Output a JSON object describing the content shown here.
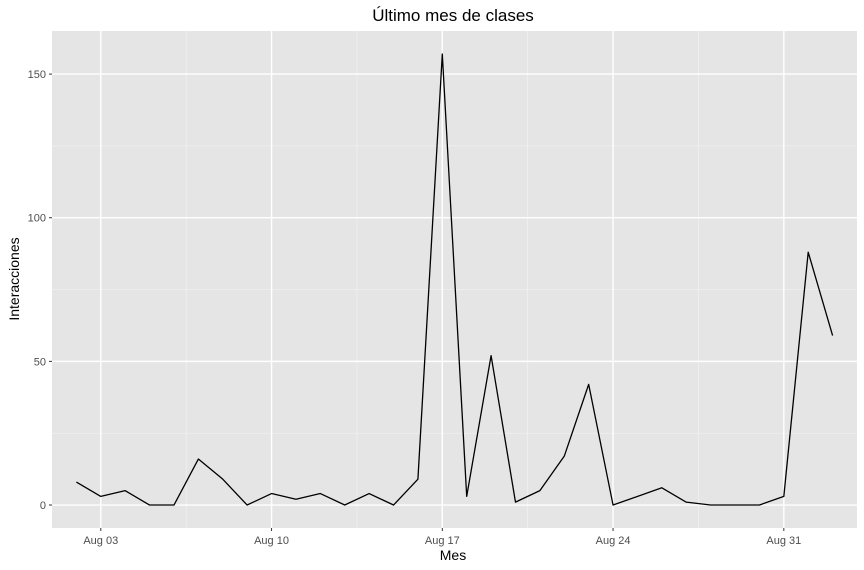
{
  "chart_data": {
    "type": "line",
    "title": "Último mes de clases",
    "xlabel": "Mes",
    "ylabel": "Interacciones",
    "x_ticks": [
      "Aug 03",
      "Aug 10",
      "Aug 17",
      "Aug 24",
      "Aug 31"
    ],
    "y_ticks": [
      "0",
      "50",
      "100",
      "150"
    ],
    "ylim": [
      -8,
      165
    ],
    "xlim": [
      "2020-08-01",
      "2020-09-03"
    ],
    "grid": true,
    "legend": "none",
    "series": [
      {
        "color": "#000000",
        "points": [
          {
            "x": "2020-08-02",
            "y": 8
          },
          {
            "x": "2020-08-03",
            "y": 3
          },
          {
            "x": "2020-08-04",
            "y": 5
          },
          {
            "x": "2020-08-05",
            "y": 0
          },
          {
            "x": "2020-08-06",
            "y": 0
          },
          {
            "x": "2020-08-07",
            "y": 16
          },
          {
            "x": "2020-08-08",
            "y": 9
          },
          {
            "x": "2020-08-09",
            "y": 0
          },
          {
            "x": "2020-08-10",
            "y": 4
          },
          {
            "x": "2020-08-11",
            "y": 2
          },
          {
            "x": "2020-08-12",
            "y": 4
          },
          {
            "x": "2020-08-13",
            "y": 0
          },
          {
            "x": "2020-08-14",
            "y": 4
          },
          {
            "x": "2020-08-15",
            "y": 0
          },
          {
            "x": "2020-08-16",
            "y": 9
          },
          {
            "x": "2020-08-17",
            "y": 157
          },
          {
            "x": "2020-08-18",
            "y": 3
          },
          {
            "x": "2020-08-19",
            "y": 52
          },
          {
            "x": "2020-08-20",
            "y": 1
          },
          {
            "x": "2020-08-21",
            "y": 5
          },
          {
            "x": "2020-08-22",
            "y": 17
          },
          {
            "x": "2020-08-23",
            "y": 42
          },
          {
            "x": "2020-08-24",
            "y": 0
          },
          {
            "x": "2020-08-26",
            "y": 6
          },
          {
            "x": "2020-08-27",
            "y": 1
          },
          {
            "x": "2020-08-28",
            "y": 0
          },
          {
            "x": "2020-08-30",
            "y": 0
          },
          {
            "x": "2020-08-31",
            "y": 3
          },
          {
            "x": "2020-09-01",
            "y": 88
          },
          {
            "x": "2020-09-02",
            "y": 59
          }
        ]
      }
    ]
  }
}
